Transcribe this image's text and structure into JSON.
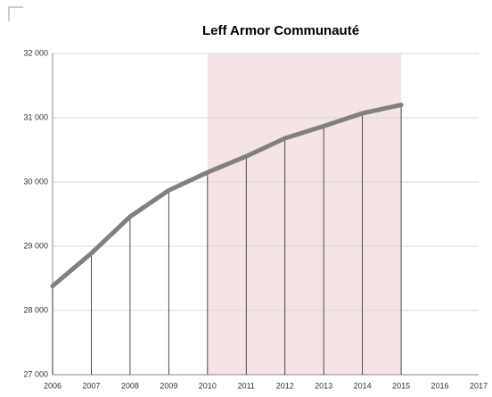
{
  "chart_data": {
    "type": "line",
    "title": "Leff Armor Communauté",
    "x": [
      2006,
      2007,
      2008,
      2009,
      2010,
      2011,
      2012,
      2013,
      2014,
      2015,
      2016,
      2017
    ],
    "series": [
      {
        "name": "Leff Armor Communauté",
        "color": "#808080",
        "values": [
          28380,
          28890,
          29460,
          29870,
          30150,
          30400,
          30680,
          30870,
          31070,
          31200,
          null,
          null
        ]
      }
    ],
    "xlim": [
      2006,
      2017
    ],
    "xticks": [
      2006,
      2007,
      2008,
      2009,
      2010,
      2011,
      2012,
      2013,
      2014,
      2015,
      2016,
      2017
    ],
    "ylim": [
      27000,
      32000
    ],
    "yticks": [
      {
        "value": 27000,
        "label": "27 000"
      },
      {
        "value": 28000,
        "label": "28 000"
      },
      {
        "value": 29000,
        "label": "29 000"
      },
      {
        "value": 30000,
        "label": "30 000"
      },
      {
        "value": 31000,
        "label": "31 000"
      },
      {
        "value": 32000,
        "label": "32 000"
      }
    ],
    "grid": true,
    "highlight_range": [
      2010,
      2015
    ],
    "highlight_color": "#f4e4e4",
    "drop_lines": true
  }
}
